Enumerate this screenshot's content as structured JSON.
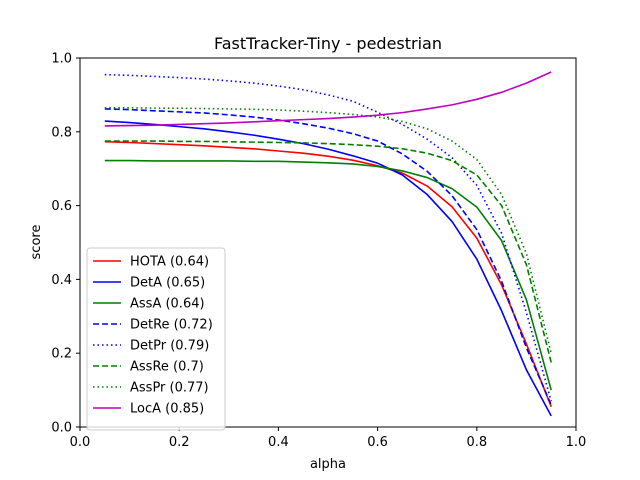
{
  "chart_data": {
    "type": "line",
    "title": "FastTracker-Tiny - pedestrian",
    "xlabel": "alpha",
    "ylabel": "score",
    "xlim": [
      0.0,
      1.0
    ],
    "ylim": [
      0.0,
      1.0
    ],
    "xticks": [
      "0.0",
      "0.2",
      "0.4",
      "0.6",
      "0.8",
      "1.0"
    ],
    "yticks": [
      "0.0",
      "0.2",
      "0.4",
      "0.6",
      "0.8",
      "1.0"
    ],
    "grid": false,
    "legend_position": "lower-left",
    "x": [
      0.05,
      0.1,
      0.15,
      0.2,
      0.25,
      0.3,
      0.35,
      0.4,
      0.45,
      0.5,
      0.55,
      0.6,
      0.65,
      0.7,
      0.75,
      0.8,
      0.85,
      0.9,
      0.95
    ],
    "series": [
      {
        "name": "HOTA (0.64)",
        "color": "#ff0000",
        "dash": "solid",
        "values": [
          0.773,
          0.771,
          0.768,
          0.765,
          0.762,
          0.758,
          0.754,
          0.748,
          0.742,
          0.734,
          0.723,
          0.708,
          0.688,
          0.653,
          0.597,
          0.512,
          0.385,
          0.225,
          0.055
        ]
      },
      {
        "name": "DetA (0.65)",
        "color": "#0000ff",
        "dash": "solid",
        "values": [
          0.829,
          0.825,
          0.82,
          0.814,
          0.808,
          0.8,
          0.791,
          0.78,
          0.768,
          0.753,
          0.735,
          0.715,
          0.683,
          0.63,
          0.557,
          0.455,
          0.315,
          0.155,
          0.03
        ]
      },
      {
        "name": "AssA (0.64)",
        "color": "#008000",
        "dash": "solid",
        "values": [
          0.722,
          0.722,
          0.721,
          0.721,
          0.721,
          0.721,
          0.72,
          0.72,
          0.718,
          0.716,
          0.713,
          0.706,
          0.694,
          0.676,
          0.646,
          0.596,
          0.505,
          0.345,
          0.1
        ]
      },
      {
        "name": "DetRe (0.72)",
        "color": "#0000ff",
        "dash": "dashed",
        "values": [
          0.862,
          0.86,
          0.857,
          0.854,
          0.851,
          0.846,
          0.84,
          0.832,
          0.822,
          0.81,
          0.795,
          0.775,
          0.74,
          0.693,
          0.627,
          0.535,
          0.395,
          0.215,
          0.06
        ]
      },
      {
        "name": "DetPr (0.79)",
        "color": "#0000ff",
        "dash": "dotted",
        "values": [
          0.955,
          0.953,
          0.95,
          0.947,
          0.943,
          0.938,
          0.932,
          0.924,
          0.914,
          0.9,
          0.883,
          0.853,
          0.82,
          0.78,
          0.73,
          0.655,
          0.525,
          0.31,
          0.07
        ]
      },
      {
        "name": "AssRe (0.7)",
        "color": "#008000",
        "dash": "dashed",
        "values": [
          0.775,
          0.775,
          0.775,
          0.774,
          0.774,
          0.773,
          0.772,
          0.771,
          0.77,
          0.768,
          0.765,
          0.761,
          0.754,
          0.742,
          0.722,
          0.683,
          0.6,
          0.44,
          0.175
        ]
      },
      {
        "name": "AssPr (0.77)",
        "color": "#008000",
        "dash": "dotted",
        "values": [
          0.865,
          0.865,
          0.864,
          0.864,
          0.863,
          0.862,
          0.861,
          0.859,
          0.856,
          0.852,
          0.847,
          0.84,
          0.828,
          0.808,
          0.775,
          0.725,
          0.63,
          0.47,
          0.2
        ]
      },
      {
        "name": "LocA (0.85)",
        "color": "#c000c0",
        "dash": "solid",
        "values": [
          0.816,
          0.817,
          0.818,
          0.82,
          0.822,
          0.824,
          0.827,
          0.83,
          0.833,
          0.836,
          0.84,
          0.845,
          0.852,
          0.862,
          0.873,
          0.888,
          0.907,
          0.932,
          0.962
        ]
      }
    ]
  }
}
